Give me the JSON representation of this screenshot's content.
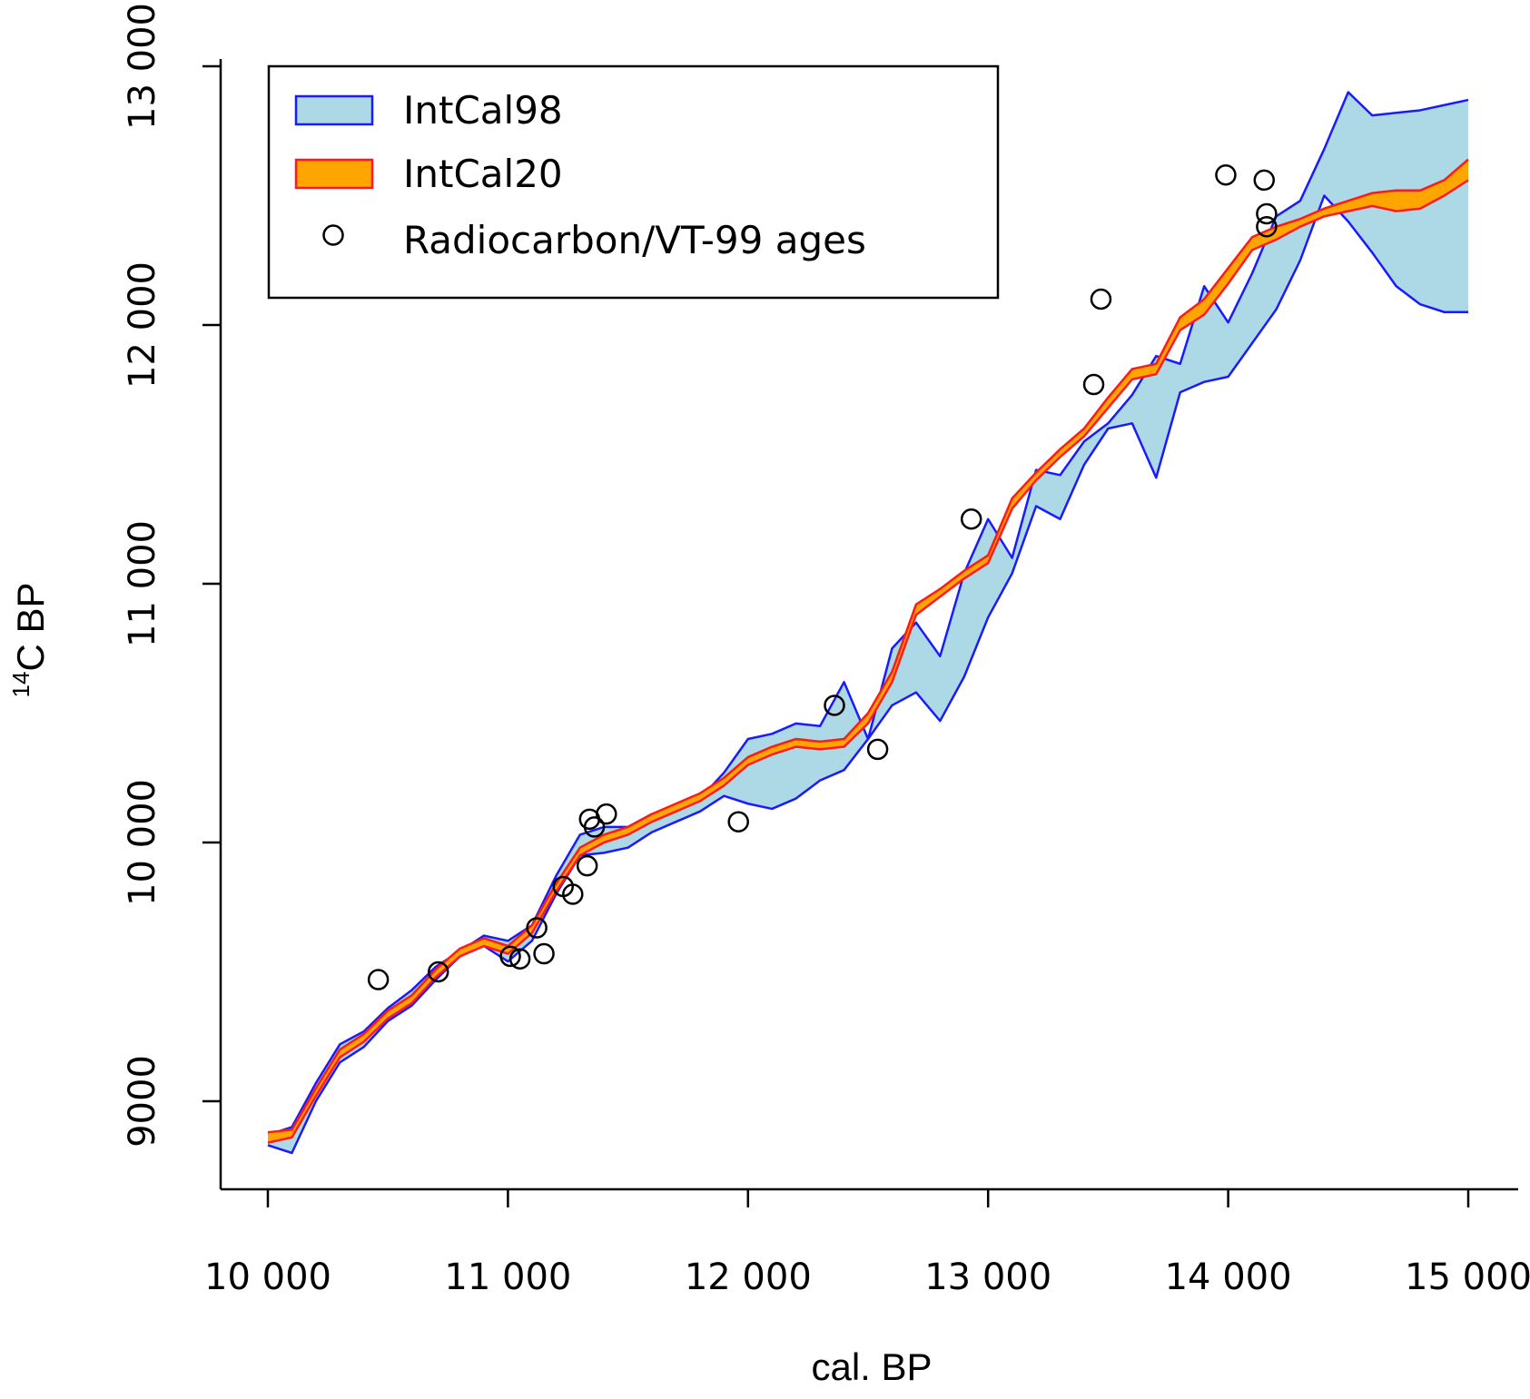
{
  "chart_data": {
    "type": "line",
    "title": "",
    "xlabel": "cal. BP",
    "ylabel": "C BP",
    "ylabel_superscript": "14",
    "xlim": [
      10000,
      15000
    ],
    "ylim": [
      9000,
      13000
    ],
    "x_ticks": [
      10000,
      11000,
      12000,
      13000,
      14000,
      15000
    ],
    "x_tick_labels": [
      "10 000",
      "11 000",
      "12 000",
      "13 000",
      "14 000",
      "15 000"
    ],
    "y_ticks": [
      9000,
      10000,
      11000,
      12000,
      13000
    ],
    "y_tick_labels": [
      "9000",
      "10 000",
      "11 000",
      "12 000",
      "13 000"
    ],
    "grid": false,
    "legend_position": "top-left",
    "colors": {
      "intcal98_fill": "#add8e6",
      "intcal98_line": "#1a1aff",
      "intcal20_fill": "#ffa500",
      "intcal20_line": "#ff1a1a",
      "points": "#000000"
    },
    "series": [
      {
        "name": "IntCal98",
        "kind": "band",
        "x": [
          10000,
          10100,
          10200,
          10300,
          10400,
          10500,
          10600,
          10700,
          10800,
          10900,
          11000,
          11100,
          11200,
          11300,
          11400,
          11500,
          11600,
          11700,
          11800,
          11900,
          12000,
          12100,
          12200,
          12300,
          12400,
          12500,
          12600,
          12700,
          12800,
          12900,
          13000,
          13100,
          13200,
          13300,
          13400,
          13500,
          13600,
          13700,
          13800,
          13900,
          14000,
          14100,
          14200,
          14300,
          14400,
          14500,
          14600,
          14700,
          14800,
          14900,
          15000
        ],
        "upper": [
          8870,
          8900,
          9070,
          9220,
          9270,
          9360,
          9430,
          9520,
          9580,
          9640,
          9620,
          9680,
          9870,
          10030,
          10060,
          10060,
          10110,
          10140,
          10170,
          10270,
          10400,
          10420,
          10460,
          10450,
          10620,
          10400,
          10750,
          10850,
          10720,
          11040,
          11250,
          11100,
          11440,
          11420,
          11550,
          11620,
          11730,
          11880,
          11850,
          12150,
          12010,
          12200,
          12420,
          12480,
          12680,
          12900,
          12810,
          12820,
          12830,
          12850,
          12870
        ],
        "lower": [
          8830,
          8800,
          9000,
          9150,
          9210,
          9310,
          9370,
          9470,
          9560,
          9600,
          9540,
          9620,
          9800,
          9950,
          9960,
          9980,
          10040,
          10080,
          10120,
          10180,
          10150,
          10130,
          10170,
          10240,
          10280,
          10400,
          10530,
          10580,
          10470,
          10640,
          10870,
          11040,
          11300,
          11250,
          11460,
          11600,
          11620,
          11410,
          11740,
          11780,
          11800,
          11930,
          12060,
          12250,
          12500,
          12400,
          12280,
          12150,
          12080,
          12050,
          12050
        ]
      },
      {
        "name": "IntCal20",
        "kind": "band",
        "x": [
          10000,
          10100,
          10200,
          10300,
          10400,
          10500,
          10600,
          10700,
          10800,
          10900,
          11000,
          11100,
          11200,
          11300,
          11400,
          11500,
          11600,
          11700,
          11800,
          11900,
          12000,
          12100,
          12200,
          12300,
          12400,
          12500,
          12600,
          12700,
          12800,
          12900,
          13000,
          13100,
          13200,
          13300,
          13400,
          13500,
          13600,
          13700,
          13800,
          13900,
          14000,
          14100,
          14200,
          14300,
          14400,
          14500,
          14600,
          14700,
          14800,
          14900,
          15000
        ],
        "upper": [
          8880,
          8890,
          9050,
          9200,
          9260,
          9350,
          9410,
          9510,
          9590,
          9630,
          9600,
          9680,
          9840,
          9980,
          10030,
          10060,
          10110,
          10150,
          10190,
          10250,
          10330,
          10370,
          10400,
          10390,
          10400,
          10500,
          10660,
          10920,
          10980,
          11050,
          11110,
          11330,
          11430,
          11520,
          11600,
          11720,
          11830,
          11850,
          12030,
          12100,
          12220,
          12340,
          12380,
          12410,
          12450,
          12480,
          12510,
          12520,
          12520,
          12560,
          12640
        ],
        "lower": [
          8840,
          8860,
          9020,
          9170,
          9230,
          9320,
          9380,
          9480,
          9560,
          9600,
          9570,
          9650,
          9810,
          9950,
          10000,
          10030,
          10080,
          10120,
          10160,
          10220,
          10300,
          10340,
          10370,
          10360,
          10370,
          10460,
          10620,
          10880,
          10950,
          11020,
          11080,
          11290,
          11400,
          11490,
          11570,
          11680,
          11790,
          11810,
          11980,
          12040,
          12160,
          12290,
          12330,
          12380,
          12420,
          12440,
          12460,
          12440,
          12450,
          12500,
          12560
        ]
      },
      {
        "name": "Radiocarbon/VT-99 ages",
        "kind": "scatter",
        "points": [
          {
            "x": 10460,
            "y": 9470
          },
          {
            "x": 10710,
            "y": 9500
          },
          {
            "x": 11010,
            "y": 9560
          },
          {
            "x": 11050,
            "y": 9550
          },
          {
            "x": 11120,
            "y": 9670
          },
          {
            "x": 11150,
            "y": 9570
          },
          {
            "x": 11230,
            "y": 9830
          },
          {
            "x": 11270,
            "y": 9800
          },
          {
            "x": 11330,
            "y": 9910
          },
          {
            "x": 11340,
            "y": 10090
          },
          {
            "x": 11360,
            "y": 10060
          },
          {
            "x": 11410,
            "y": 10110
          },
          {
            "x": 11960,
            "y": 10080
          },
          {
            "x": 12360,
            "y": 10530
          },
          {
            "x": 12540,
            "y": 10360
          },
          {
            "x": 12930,
            "y": 11250
          },
          {
            "x": 13440,
            "y": 11770
          },
          {
            "x": 13470,
            "y": 12100
          },
          {
            "x": 13990,
            "y": 12580
          },
          {
            "x": 14150,
            "y": 12560
          },
          {
            "x": 14160,
            "y": 12430
          },
          {
            "x": 14160,
            "y": 12380
          }
        ]
      }
    ]
  },
  "legend": {
    "items": [
      {
        "label": "IntCal98"
      },
      {
        "label": "IntCal20"
      },
      {
        "label": "Radiocarbon/VT-99 ages"
      }
    ]
  }
}
